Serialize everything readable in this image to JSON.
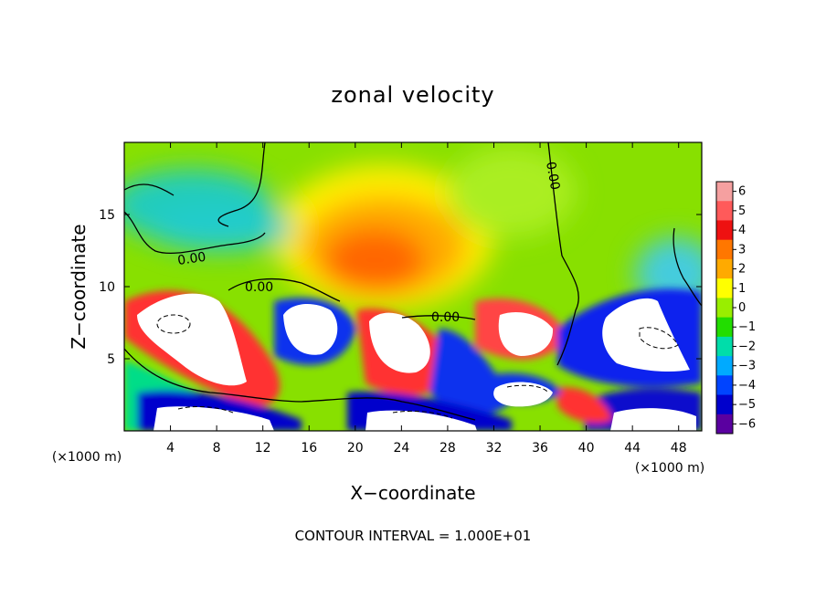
{
  "chart_data": {
    "type": "heatmap",
    "title": "zonal velocity",
    "xlabel": "X−coordinate",
    "ylabel": "Z−coordinate",
    "x_units": "(×1000 m)",
    "y_units": "(×1000 m)",
    "xlim": [
      0,
      50
    ],
    "ylim": [
      0,
      20
    ],
    "x_ticks": [
      4,
      8,
      12,
      16,
      20,
      24,
      28,
      32,
      36,
      40,
      44,
      48
    ],
    "y_ticks": [
      5,
      10,
      15
    ],
    "colorbar": {
      "min": -6,
      "max": 6,
      "ticks": [
        6,
        5,
        4,
        3,
        2,
        1,
        0,
        -1,
        -2,
        -3,
        -4,
        -5,
        -6
      ],
      "colors": [
        "#f5a0a0",
        "#ff5a5a",
        "#ee1111",
        "#ff7700",
        "#ffaa00",
        "#ffff00",
        "#99ee00",
        "#22dd00",
        "#00ddaa",
        "#00aaff",
        "#0044ff",
        "#0000cc",
        "#5a00a0"
      ]
    },
    "contour_labels": [
      {
        "text": "0.00",
        "x": 6.3,
        "z": 12.2
      },
      {
        "text": "0.00",
        "x": 12.3,
        "z": 10.3
      },
      {
        "text": "0.00",
        "x": 28.5,
        "z": 8.0
      },
      {
        "text": "0.00",
        "x": 36.5,
        "z": 17.5
      }
    ],
    "footnote": "CONTOUR INTERVAL = 1.000E+01"
  }
}
